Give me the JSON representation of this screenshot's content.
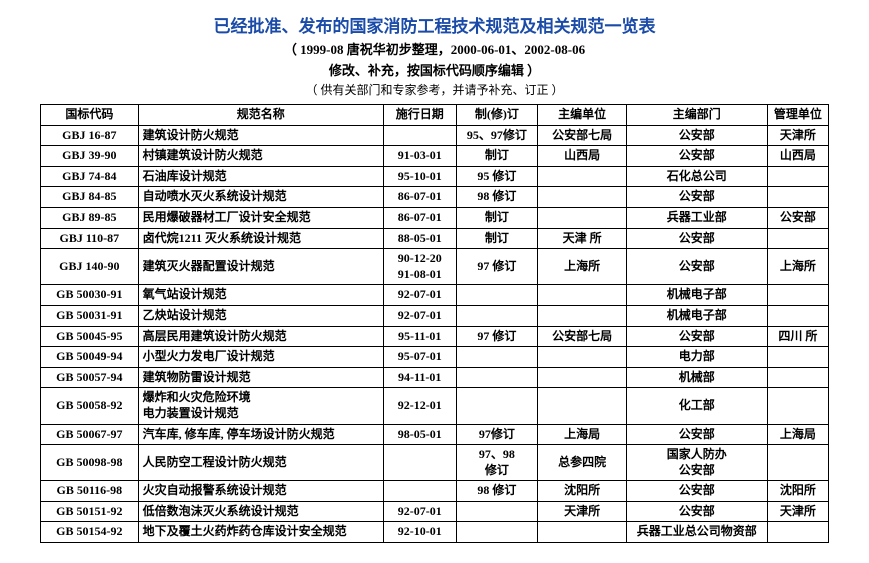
{
  "header": {
    "title": "已经批准、发布的国家消防工程技术规范及相关规范一览表",
    "subtitle1": "（ 1999-08 唐祝华初步整理，2000-06-01、2002-08-06",
    "subtitle2": "修改、补充，按国标代码顺序编辑 ）",
    "note": "（ 供有关部门和专家参考，并请予补充、订正 ）"
  },
  "columns": [
    "国标代码",
    "规范名称",
    "施行日期",
    "制(修)订",
    "主编单位",
    "主编部门",
    "管理单位"
  ],
  "rows": [
    {
      "c0": "GBJ 16-87",
      "c1": "建筑设计防火规范",
      "c2": "",
      "c3": "95、97修订",
      "c4": "公安部七局",
      "c5": "公安部",
      "c6": "天津所"
    },
    {
      "c0": "GBJ 39-90",
      "c1": "村镇建筑设计防火规范",
      "c2": "91-03-01",
      "c3": "制订",
      "c4": "山西局",
      "c5": "公安部",
      "c6": "山西局"
    },
    {
      "c0": "GBJ 74-84",
      "c1": "石油库设计规范",
      "c2": "95-10-01",
      "c3": "95 修订",
      "c4": "",
      "c5": "石化总公司",
      "c6": ""
    },
    {
      "c0": "GBJ 84-85",
      "c1": "自动喷水灭火系统设计规范",
      "c2": "86-07-01",
      "c3": "98 修订",
      "c4": "",
      "c5": "公安部",
      "c6": ""
    },
    {
      "c0": "GBJ 89-85",
      "c1": "民用爆破器材工厂设计安全规范",
      "c2": "86-07-01",
      "c3": "制订",
      "c4": "",
      "c5": "兵器工业部",
      "c6": "公安部"
    },
    {
      "c0": "GBJ 110-87",
      "c1": "卤代烷1211 灭火系统设计规范",
      "c2": "88-05-01",
      "c3": "制订",
      "c4": "天津 所",
      "c5": "公安部",
      "c6": ""
    },
    {
      "c0": "GBJ 140-90",
      "c1": "建筑灭火器配置设计规范",
      "c2": "90-12-20\n91-08-01",
      "c3": "97 修订",
      "c4": "上海所",
      "c5": "公安部",
      "c6": "上海所"
    },
    {
      "c0": "GB 50030-91",
      "c1": "氧气站设计规范",
      "c2": "92-07-01",
      "c3": "",
      "c4": "",
      "c5": "机械电子部",
      "c6": ""
    },
    {
      "c0": "GB 50031-91",
      "c1": "乙炔站设计规范",
      "c2": "92-07-01",
      "c3": "",
      "c4": "",
      "c5": "机械电子部",
      "c6": ""
    },
    {
      "c0": "GB 50045-95",
      "c1": "高层民用建筑设计防火规范",
      "c2": "95-11-01",
      "c3": "97 修订",
      "c4": "公安部七局",
      "c5": "公安部",
      "c6": "四川 所"
    },
    {
      "c0": "GB 50049-94",
      "c1": "小型火力发电厂设计规范",
      "c2": "95-07-01",
      "c3": "",
      "c4": "",
      "c5": "电力部",
      "c6": ""
    },
    {
      "c0": "GB 50057-94",
      "c1": "建筑物防雷设计规范",
      "c2": "94-11-01",
      "c3": "",
      "c4": "",
      "c5": "机械部",
      "c6": ""
    },
    {
      "c0": "GB 50058-92",
      "c1": "爆炸和火灾危险环境\n电力装置设计规范",
      "c2": "92-12-01",
      "c3": "",
      "c4": "",
      "c5": "化工部",
      "c6": ""
    },
    {
      "c0": "GB 50067-97",
      "c1": "汽车库, 修车库, 停车场设计防火规范",
      "c2": "98-05-01",
      "c3": "97修订",
      "c4": "上海局",
      "c5": "公安部",
      "c6": "上海局"
    },
    {
      "c0": "GB 50098-98",
      "c1": "人民防空工程设计防火规范",
      "c2": "",
      "c3": "97、98\n修订",
      "c4": "总参四院",
      "c5": "国家人防办\n公安部",
      "c6": ""
    },
    {
      "c0": "GB 50116-98",
      "c1": "火灾自动报警系统设计规范",
      "c2": "",
      "c3": "98 修订",
      "c4": "沈阳所",
      "c5": "公安部",
      "c6": "沈阳所"
    },
    {
      "c0": "GB 50151-92",
      "c1": "低倍数泡沫灭火系统设计规范",
      "c2": "92-07-01",
      "c3": "",
      "c4": "天津所",
      "c5": "公安部",
      "c6": "天津所"
    },
    {
      "c0": "GB 50154-92",
      "c1": "地下及覆土火药炸药仓库设计安全规范",
      "c2": "92-10-01",
      "c3": "",
      "c4": "",
      "c5": "兵器工业总公司物资部",
      "c6": ""
    }
  ]
}
